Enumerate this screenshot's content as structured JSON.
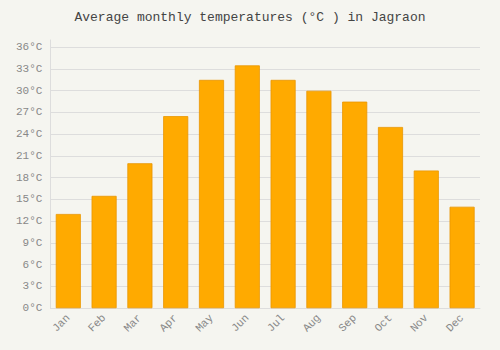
{
  "chart_data": {
    "type": "bar",
    "title": "Average monthly temperatures (°C ) in Jagraon",
    "categories": [
      "Jan",
      "Feb",
      "Mar",
      "Apr",
      "May",
      "Jun",
      "Jul",
      "Aug",
      "Sep",
      "Oct",
      "Nov",
      "Dec"
    ],
    "values": [
      13,
      15.5,
      20,
      26.5,
      31.5,
      33.5,
      31.5,
      30,
      28.5,
      25,
      19,
      14
    ],
    "color": "#FFAA00",
    "ylim": [
      0,
      37
    ],
    "yticks": [
      {
        "value": 0,
        "label": "0°C"
      },
      {
        "value": 3,
        "label": "3°C"
      },
      {
        "value": 6,
        "label": "6°C"
      },
      {
        "value": 9,
        "label": "9°C"
      },
      {
        "value": 12,
        "label": "12°C"
      },
      {
        "value": 15,
        "label": "15°C"
      },
      {
        "value": 18,
        "label": "18°C"
      },
      {
        "value": 21,
        "label": "21°C"
      },
      {
        "value": 24,
        "label": "24°C"
      },
      {
        "value": 27,
        "label": "27°C"
      },
      {
        "value": 30,
        "label": "30°C"
      },
      {
        "value": 33,
        "label": "33°C"
      },
      {
        "value": 36,
        "label": "36°C"
      }
    ],
    "grid": true
  }
}
